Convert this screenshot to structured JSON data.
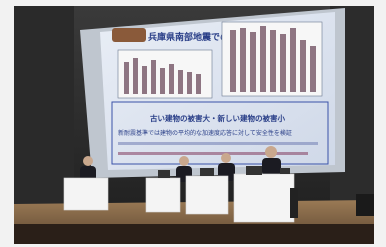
{
  "slide": {
    "title": "兵庫県南部地震でのRC建物",
    "lines": [
      "古い建物の被害大・新しい建物の被害小",
      "新耐震基準では建物の平均的な加速度応答に対して安全性を検証"
    ]
  }
}
